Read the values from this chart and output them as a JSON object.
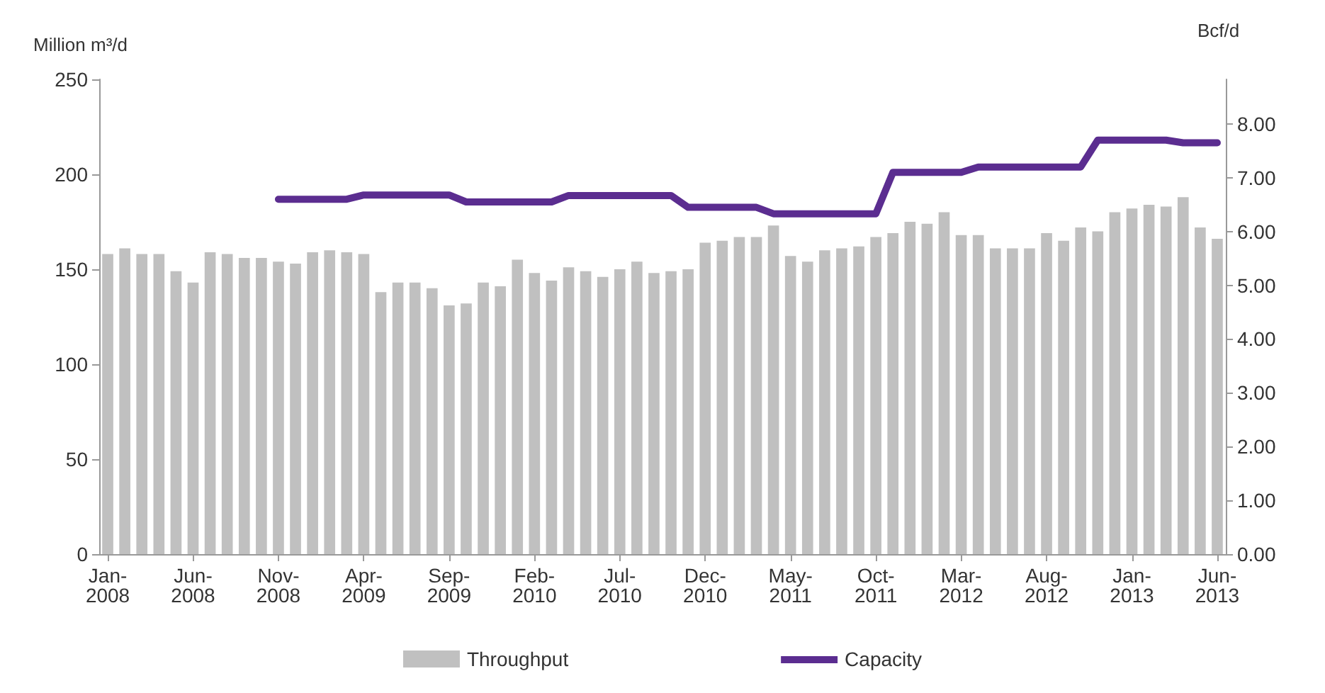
{
  "chart_data": {
    "type": "bar",
    "ylabel": "Million m³/d",
    "y2label": "Bcf/d",
    "categories": [
      "Jan-2008",
      null,
      null,
      null,
      null,
      "Jun-2008",
      null,
      null,
      null,
      null,
      "Nov-2008",
      null,
      null,
      null,
      null,
      "Apr-2009",
      null,
      null,
      null,
      null,
      "Sep-2009",
      null,
      null,
      null,
      null,
      "Feb-2010",
      null,
      null,
      null,
      null,
      "Jul-2010",
      null,
      null,
      null,
      null,
      "Dec-2010",
      null,
      null,
      null,
      null,
      "May-2011",
      null,
      null,
      null,
      null,
      "Oct-2011",
      null,
      null,
      null,
      null,
      "Mar-2012",
      null,
      null,
      null,
      null,
      "Aug-2012",
      null,
      null,
      null,
      null,
      "Jan-2013",
      null,
      null,
      null,
      null,
      "Jun-2013"
    ],
    "series": [
      {
        "name": "Throughput",
        "color": "#c0c0c0",
        "values": [
          158,
          161,
          158,
          158,
          149,
          143,
          159,
          158,
          156,
          156,
          154,
          153,
          159,
          160,
          159,
          158,
          138,
          143,
          143,
          140,
          131,
          132,
          143,
          141,
          155,
          148,
          144,
          151,
          149,
          146,
          150,
          154,
          148,
          149,
          150,
          164,
          165,
          167,
          167,
          173,
          157,
          154,
          160,
          161,
          162,
          167,
          169,
          175,
          174,
          180,
          168,
          168,
          161,
          161,
          161,
          169,
          165,
          172,
          170,
          180,
          182,
          184,
          183,
          188,
          172,
          166
        ]
      },
      {
        "name": "Capacity",
        "type": "line",
        "axis": "y2",
        "color": "#5b2d90",
        "values": [
          null,
          null,
          null,
          null,
          null,
          null,
          null,
          null,
          null,
          null,
          6.6,
          6.6,
          6.6,
          6.6,
          6.6,
          6.68,
          6.68,
          6.68,
          6.68,
          6.68,
          6.68,
          6.55,
          6.55,
          6.55,
          6.55,
          6.55,
          6.55,
          6.67,
          6.67,
          6.67,
          6.67,
          6.67,
          6.67,
          6.67,
          6.45,
          6.45,
          6.45,
          6.45,
          6.45,
          6.33,
          6.33,
          6.33,
          6.33,
          6.33,
          6.33,
          6.33,
          7.1,
          7.1,
          7.1,
          7.1,
          7.1,
          7.2,
          7.2,
          7.2,
          7.2,
          7.2,
          7.2,
          7.2,
          7.7,
          7.7,
          7.7,
          7.7,
          7.7,
          7.65,
          7.65,
          7.65
        ]
      }
    ],
    "ylim": [
      0,
      250
    ],
    "yticks": [
      0,
      50,
      100,
      150,
      200,
      250
    ],
    "y2lim": [
      0,
      8.83
    ],
    "y2ticks": [
      {
        "value": 0,
        "label": "0.00"
      },
      {
        "value": 1,
        "label": "1.00"
      },
      {
        "value": 2,
        "label": "2.00"
      },
      {
        "value": 3,
        "label": "3.00"
      },
      {
        "value": 4,
        "label": "4.00"
      },
      {
        "value": 5,
        "label": "5.00"
      },
      {
        "value": 6,
        "label": "6.00"
      },
      {
        "value": 7,
        "label": "7.00"
      },
      {
        "value": 8,
        "label": "8.00"
      }
    ],
    "grid": false,
    "legend": "bottom",
    "marker": "none",
    "line_style": "solid"
  }
}
